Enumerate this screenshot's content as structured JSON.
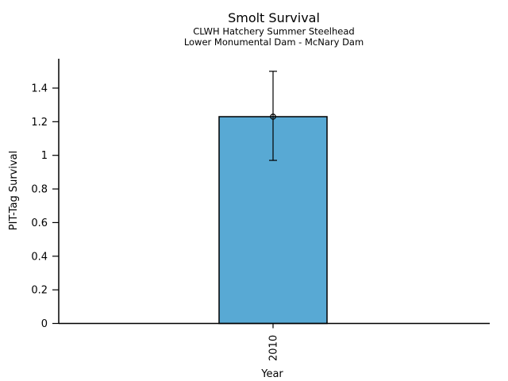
{
  "chart_data": {
    "type": "bar",
    "title": "Smolt Survival",
    "subtitle1": "CLWH Hatchery Summer Steelhead",
    "subtitle2": "Lower Monumental Dam - McNary Dam",
    "xlabel": "Year",
    "ylabel": "PIT-Tag Survival",
    "categories": [
      "2010"
    ],
    "series": [
      {
        "name": "PIT-Tag Survival",
        "values": [
          1.23
        ]
      }
    ],
    "error_bars": {
      "low": [
        0.97
      ],
      "high": [
        1.5
      ]
    },
    "y_ticks": [
      {
        "value": 0,
        "label": "0"
      },
      {
        "value": 0.2,
        "label": "0.2"
      },
      {
        "value": 0.4,
        "label": "0.4"
      },
      {
        "value": 0.6,
        "label": "0.6"
      },
      {
        "value": 0.8,
        "label": "0.8"
      },
      {
        "value": 1,
        "label": "1"
      },
      {
        "value": 1.2,
        "label": "1.2"
      },
      {
        "value": 1.4,
        "label": "1.4"
      }
    ],
    "ylim": [
      0,
      1.58
    ],
    "grid": false,
    "legend": "none",
    "bar_fill": "#58A9D4",
    "bar_stroke": "#000000",
    "marker": "open-circle"
  }
}
